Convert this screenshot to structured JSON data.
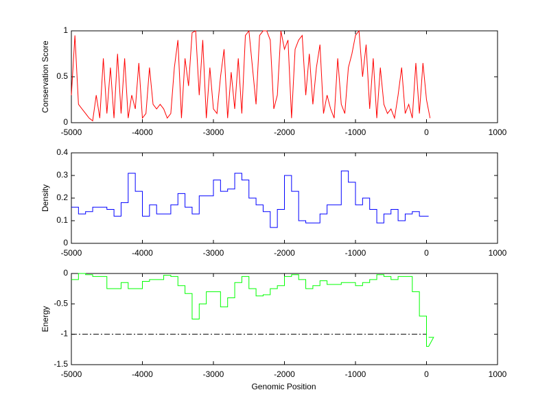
{
  "chart_data": [
    {
      "type": "line",
      "ylabel": "Conservation Score",
      "xlabel": "",
      "xlim": [
        -5000,
        1000
      ],
      "ylim": [
        0,
        1
      ],
      "xticks": [
        "-5000",
        "-4000",
        "-3000",
        "-2000",
        "-1000",
        "0",
        "1000"
      ],
      "yticks": [
        "0",
        "0.5",
        "1"
      ],
      "color": "#ff0000",
      "x_start": -5000,
      "x_step": 50,
      "values": [
        0.3,
        0.95,
        0.2,
        0.15,
        0.1,
        0.05,
        0.02,
        0.3,
        0.05,
        0.7,
        0.1,
        0.6,
        0.05,
        0.75,
        0.1,
        0.7,
        0.05,
        0.3,
        0.15,
        0.65,
        0.05,
        0.1,
        0.6,
        0.2,
        0.15,
        0.2,
        0.15,
        0.05,
        0.1,
        0.6,
        0.9,
        0.05,
        0.7,
        0.4,
        0.98,
        1.0,
        0.3,
        0.9,
        0.05,
        0.6,
        0.15,
        0.1,
        0.5,
        0.8,
        0.05,
        0.55,
        0.15,
        0.7,
        0.1,
        0.95,
        1.0,
        0.6,
        0.2,
        0.95,
        1.0,
        1.0,
        0.9,
        0.15,
        0.3,
        1.0,
        0.8,
        0.9,
        0.05,
        0.8,
        0.9,
        0.95,
        0.3,
        0.75,
        0.2,
        0.6,
        0.85,
        0.1,
        0.3,
        0.15,
        0.05,
        0.7,
        0.2,
        0.1,
        0.6,
        0.75,
        0.95,
        1.0,
        0.5,
        0.85,
        0.15,
        0.7,
        0.05,
        0.6,
        0.2,
        0.1,
        0.15,
        0.05,
        0.3,
        0.6,
        0.1,
        0.2,
        0.05,
        0.65,
        0.1,
        0.65,
        0.25,
        0.05
      ]
    },
    {
      "type": "line",
      "ylabel": "Density",
      "xlabel": "",
      "xlim": [
        -5000,
        1000
      ],
      "ylim": [
        0,
        0.4
      ],
      "xticks": [
        "-5000",
        "-4000",
        "-3000",
        "-2000",
        "-1000",
        "0",
        "1000"
      ],
      "yticks": [
        "0",
        "0.1",
        "0.2",
        "0.3",
        "0.4"
      ],
      "color": "#0000ff",
      "x_start": -5000,
      "x_step": 100,
      "values": [
        0.16,
        0.13,
        0.14,
        0.16,
        0.16,
        0.15,
        0.12,
        0.18,
        0.31,
        0.23,
        0.12,
        0.17,
        0.13,
        0.13,
        0.17,
        0.22,
        0.16,
        0.13,
        0.21,
        0.21,
        0.28,
        0.23,
        0.24,
        0.31,
        0.28,
        0.2,
        0.17,
        0.14,
        0.07,
        0.15,
        0.3,
        0.23,
        0.1,
        0.09,
        0.09,
        0.13,
        0.17,
        0.17,
        0.32,
        0.27,
        0.17,
        0.2,
        0.15,
        0.09,
        0.13,
        0.15,
        0.1,
        0.13,
        0.14,
        0.12,
        0.12
      ]
    },
    {
      "type": "line",
      "ylabel": "Energy",
      "xlabel": "Genomic Position",
      "xlim": [
        -5000,
        1000
      ],
      "ylim": [
        -1.5,
        0
      ],
      "xticks": [
        "-5000",
        "-4000",
        "-3000",
        "-2000",
        "-1000",
        "0",
        "1000"
      ],
      "yticks": [
        "-1.5",
        "-1",
        "-0.5",
        "0"
      ],
      "color": "#00ff00",
      "x_start": -5000,
      "x_step": 100,
      "values": [
        -0.1,
        0,
        -0.02,
        -0.05,
        -0.05,
        -0.25,
        -0.25,
        -0.15,
        -0.25,
        -0.25,
        -0.13,
        -0.1,
        -0.1,
        -0.03,
        -0.05,
        -0.2,
        -0.33,
        -0.75,
        -0.5,
        -0.3,
        -0.3,
        -0.55,
        -0.4,
        -0.15,
        -0.05,
        -0.25,
        -0.37,
        -0.35,
        -0.25,
        -0.2,
        -0.05,
        -0.02,
        -0.1,
        -0.25,
        -0.2,
        -0.12,
        -0.18,
        -0.18,
        -0.15,
        -0.15,
        -0.2,
        -0.15,
        -0.1,
        -0.02,
        -0.05,
        -0.1,
        -0.05,
        -0.05,
        -0.3,
        -0.7,
        -1.2,
        -1.05
      ],
      "threshold": -1
    }
  ]
}
